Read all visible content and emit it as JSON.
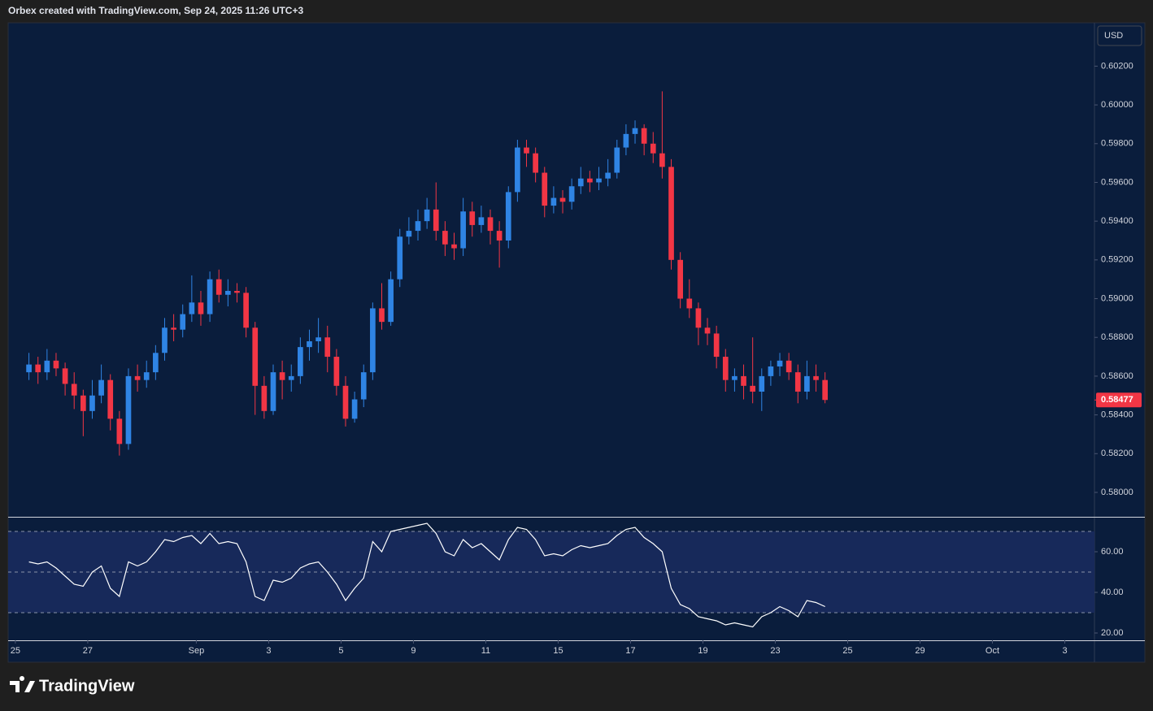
{
  "header": {
    "text": "Orbex created with TradingView.com, Sep 24, 2025 11:26 UTC+3"
  },
  "logo": {
    "text": "TradingView"
  },
  "chart_data": {
    "type": "candlestick",
    "currency": "USD",
    "up_color": "#2f84e4",
    "down_color": "#f23645",
    "x": [
      0.375,
      0.625,
      0.875,
      1.125,
      1.375,
      1.625,
      1.875,
      2.125,
      2.375,
      2.625,
      2.875,
      3.125,
      3.375,
      3.625,
      3.875,
      4.125,
      4.375,
      4.625,
      4.875,
      5.125,
      5.375,
      5.625,
      5.875,
      6.125,
      6.375,
      6.625,
      6.875,
      7.125,
      7.375,
      7.625,
      7.875,
      8.125,
      8.375,
      8.625,
      8.875,
      9.125,
      9.375,
      9.625,
      9.875,
      10.125,
      10.375,
      10.625,
      10.875,
      11.125,
      11.375,
      11.625,
      11.875,
      12.125,
      12.375,
      12.625,
      12.875,
      13.125,
      13.375,
      13.625,
      13.875,
      14.125,
      14.375,
      14.625,
      14.875,
      15.125,
      15.375,
      15.625,
      15.875,
      16.125,
      16.375,
      16.625,
      16.875,
      17.125,
      17.375,
      17.625,
      17.875,
      18.125,
      18.375,
      18.625,
      18.875,
      19.125,
      19.375,
      19.625,
      19.875,
      20.125,
      20.375,
      20.625,
      20.875,
      21.125,
      21.375,
      21.625,
      21.875,
      22.125,
      22.375
    ],
    "open": [
      0.5862,
      0.5866,
      0.5862,
      0.5868,
      0.5864,
      0.5856,
      0.585,
      0.5842,
      0.585,
      0.5858,
      0.5838,
      0.5825,
      0.586,
      0.5858,
      0.5862,
      0.5872,
      0.5885,
      0.5884,
      0.5892,
      0.5898,
      0.5892,
      0.591,
      0.5902,
      0.5904,
      0.5903,
      0.5885,
      0.5855,
      0.5842,
      0.5862,
      0.5858,
      0.586,
      0.5875,
      0.5878,
      0.588,
      0.587,
      0.5855,
      0.5838,
      0.5848,
      0.5862,
      0.5895,
      0.5888,
      0.591,
      0.5932,
      0.5935,
      0.594,
      0.5946,
      0.5935,
      0.5928,
      0.5926,
      0.5945,
      0.5938,
      0.5942,
      0.5935,
      0.593,
      0.5955,
      0.5978,
      0.5975,
      0.5965,
      0.5948,
      0.5952,
      0.595,
      0.5958,
      0.5962,
      0.596,
      0.5962,
      0.5965,
      0.5978,
      0.5985,
      0.5988,
      0.598,
      0.5975,
      0.5968,
      0.592,
      0.59,
      0.5895,
      0.5885,
      0.5882,
      0.587,
      0.5858,
      0.586,
      0.5855,
      0.5852,
      0.586,
      0.5865,
      0.5868,
      0.5862,
      0.5852,
      0.586,
      0.5858
    ],
    "high": [
      0.5872,
      0.587,
      0.5874,
      0.5872,
      0.5867,
      0.5862,
      0.5853,
      0.5858,
      0.5866,
      0.5861,
      0.5842,
      0.5864,
      0.5866,
      0.5868,
      0.5876,
      0.589,
      0.5892,
      0.5897,
      0.5912,
      0.5904,
      0.5914,
      0.5915,
      0.591,
      0.5908,
      0.5906,
      0.5888,
      0.586,
      0.5866,
      0.5868,
      0.5866,
      0.588,
      0.5884,
      0.589,
      0.5886,
      0.5874,
      0.586,
      0.5852,
      0.5866,
      0.5898,
      0.5908,
      0.5914,
      0.5936,
      0.5942,
      0.5946,
      0.5952,
      0.596,
      0.594,
      0.5934,
      0.5952,
      0.595,
      0.5948,
      0.5946,
      0.594,
      0.5958,
      0.5982,
      0.5982,
      0.5978,
      0.5968,
      0.5958,
      0.5956,
      0.5962,
      0.5968,
      0.5966,
      0.5968,
      0.5972,
      0.5982,
      0.599,
      0.5992,
      0.599,
      0.5986,
      0.6007,
      0.5972,
      0.5924,
      0.591,
      0.5898,
      0.589,
      0.5886,
      0.5874,
      0.5864,
      0.5866,
      0.588,
      0.5864,
      0.5868,
      0.5872,
      0.5872,
      0.5866,
      0.5868,
      0.5866,
      0.5862
    ],
    "low": [
      0.5858,
      0.5856,
      0.5858,
      0.586,
      0.585,
      0.5843,
      0.5829,
      0.5838,
      0.5846,
      0.5832,
      0.5819,
      0.5822,
      0.5852,
      0.5854,
      0.5858,
      0.5868,
      0.5878,
      0.588,
      0.5888,
      0.5886,
      0.5888,
      0.5898,
      0.5896,
      0.5898,
      0.588,
      0.584,
      0.5838,
      0.584,
      0.5848,
      0.5852,
      0.5856,
      0.5868,
      0.5872,
      0.5862,
      0.585,
      0.5834,
      0.5836,
      0.5844,
      0.5858,
      0.5884,
      0.5886,
      0.5906,
      0.5928,
      0.593,
      0.5936,
      0.593,
      0.5922,
      0.592,
      0.5922,
      0.5932,
      0.5934,
      0.5928,
      0.5916,
      0.5926,
      0.595,
      0.5968,
      0.596,
      0.5942,
      0.5944,
      0.5944,
      0.5946,
      0.5954,
      0.5955,
      0.5956,
      0.5958,
      0.5962,
      0.5974,
      0.598,
      0.5974,
      0.597,
      0.5962,
      0.5915,
      0.5895,
      0.589,
      0.5876,
      0.5876,
      0.5864,
      0.5852,
      0.5852,
      0.5848,
      0.5846,
      0.5842,
      0.5855,
      0.586,
      0.5858,
      0.5846,
      0.5848,
      0.5852,
      0.5846
    ],
    "close": [
      0.5866,
      0.5862,
      0.5868,
      0.5864,
      0.5856,
      0.585,
      0.5842,
      0.585,
      0.5858,
      0.5838,
      0.5825,
      0.586,
      0.5858,
      0.5862,
      0.5872,
      0.5885,
      0.5884,
      0.5892,
      0.5898,
      0.5892,
      0.591,
      0.5902,
      0.5904,
      0.5903,
      0.5885,
      0.5855,
      0.5842,
      0.5862,
      0.5858,
      0.586,
      0.5875,
      0.5878,
      0.588,
      0.587,
      0.5855,
      0.5838,
      0.5848,
      0.5862,
      0.5895,
      0.5888,
      0.591,
      0.5932,
      0.5935,
      0.594,
      0.5946,
      0.5935,
      0.5928,
      0.5926,
      0.5945,
      0.5938,
      0.5942,
      0.5935,
      0.593,
      0.5955,
      0.5978,
      0.5975,
      0.5965,
      0.5948,
      0.5952,
      0.595,
      0.5958,
      0.5962,
      0.596,
      0.5962,
      0.5965,
      0.5978,
      0.5985,
      0.5988,
      0.598,
      0.5975,
      0.5968,
      0.592,
      0.59,
      0.5895,
      0.5885,
      0.5882,
      0.587,
      0.5858,
      0.586,
      0.5855,
      0.5852,
      0.586,
      0.5865,
      0.5868,
      0.5862,
      0.5852,
      0.586,
      0.5858,
      0.58477
    ],
    "last_price": {
      "value": 0.58477,
      "label": "0.58477",
      "color": "#f23645"
    },
    "xlim": [
      -0.2,
      29.82
    ],
    "xticks": [
      {
        "value": 0,
        "label": "25"
      },
      {
        "value": 2,
        "label": "27"
      },
      {
        "value": 5,
        "label": "Sep"
      },
      {
        "value": 7,
        "label": "3"
      },
      {
        "value": 9,
        "label": "5"
      },
      {
        "value": 11,
        "label": "9"
      },
      {
        "value": 13,
        "label": "11"
      },
      {
        "value": 15,
        "label": "15"
      },
      {
        "value": 17,
        "label": "17"
      },
      {
        "value": 19,
        "label": "19"
      },
      {
        "value": 21,
        "label": "23"
      },
      {
        "value": 23,
        "label": "25"
      },
      {
        "value": 25,
        "label": "29"
      },
      {
        "value": 27,
        "label": "Oct"
      },
      {
        "value": 29,
        "label": "3"
      }
    ],
    "ylim": [
      0.57874,
      0.60424
    ],
    "yticks": [
      {
        "value": 0.58,
        "label": "0.58000"
      },
      {
        "value": 0.582,
        "label": "0.58200"
      },
      {
        "value": 0.584,
        "label": "0.58400"
      },
      {
        "value": 0.586,
        "label": "0.58600"
      },
      {
        "value": 0.588,
        "label": "0.58800"
      },
      {
        "value": 0.59,
        "label": "0.59000"
      },
      {
        "value": 0.592,
        "label": "0.59200"
      },
      {
        "value": 0.594,
        "label": "0.59400"
      },
      {
        "value": 0.596,
        "label": "0.59600"
      },
      {
        "value": 0.598,
        "label": "0.59800"
      },
      {
        "value": 0.6,
        "label": "0.60000"
      },
      {
        "value": 0.602,
        "label": "0.60200"
      }
    ],
    "indicator": {
      "type": "line",
      "color": "#ffffff",
      "values": [
        55,
        54,
        55,
        52,
        48,
        44,
        43,
        50,
        53,
        42,
        38,
        55,
        53,
        55,
        60,
        66,
        65,
        67,
        68,
        64,
        69,
        64,
        65,
        64,
        55,
        38,
        36,
        46,
        45,
        47,
        52,
        54,
        55,
        50,
        44,
        36,
        42,
        47,
        65,
        60,
        70,
        71,
        72,
        73,
        74,
        69,
        60,
        58,
        66,
        62,
        64,
        60,
        56,
        66,
        72,
        71,
        66,
        58,
        59,
        58,
        61,
        63,
        62,
        63,
        64,
        68,
        71,
        72,
        67,
        64,
        60,
        42,
        34,
        32,
        28,
        27,
        26,
        24,
        25,
        24,
        23,
        28,
        30,
        33,
        31,
        28,
        36,
        35,
        33
      ],
      "ylim": [
        16.4,
        76.8
      ],
      "yticks": [
        {
          "value": 20,
          "label": "20.00"
        },
        {
          "value": 40,
          "label": "40.00"
        },
        {
          "value": 60,
          "label": "60.00"
        }
      ],
      "levels": [
        30,
        50,
        70
      ],
      "band": [
        30,
        70
      ]
    }
  }
}
